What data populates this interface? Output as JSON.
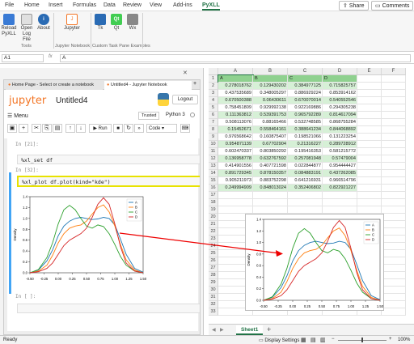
{
  "ribbon": {
    "tabs": [
      "File",
      "Home",
      "Insert",
      "Formulas",
      "Data",
      "Review",
      "View",
      "Add-ins",
      "PyXLL"
    ],
    "active_tab": "PyXLL",
    "share_label": "Share",
    "comments_label": "Comments",
    "tools": [
      "Reload PyXLL",
      "Open Log File",
      "About"
    ],
    "tools_group": "Tools",
    "jupyter_label": "Jupyter",
    "jupyter_group": "Jupyter Notebook",
    "custom": [
      "Tk",
      "Qt",
      "Wx"
    ],
    "custom_group": "Custom Task Pane Examples",
    "colors": {
      "accent": "#217346",
      "tk": "#2a6bb4",
      "qt": "#41cd52",
      "wx": "#7a7a7a"
    }
  },
  "formula_bar": {
    "name_box": "A1",
    "fx": "fx",
    "value": "A"
  },
  "browser": {
    "tabs": [
      "Home Page - Select or create a notebook",
      "Untitled4 - Jupyter Notebook"
    ],
    "close": "×",
    "new_tab": "+"
  },
  "jupyter": {
    "logo": "jupyter",
    "title": "Untitled4",
    "logout": "Logout",
    "menu": "Menu",
    "trusted": "Trusted",
    "kernel": "Python 3",
    "run": "Run",
    "cell_type": "Code",
    "cells": [
      {
        "prompt": "In [21]:",
        "code": ""
      },
      {
        "prompt": "",
        "code": "%xl_set df"
      },
      {
        "prompt": "In [32]:",
        "code": "%xl_plot df.plot(kind=\"kde\")"
      },
      {
        "prompt": "In [ ]:",
        "code": ""
      }
    ]
  },
  "sheet": {
    "columns": [
      "A",
      "B",
      "C",
      "D",
      "E",
      "F"
    ],
    "rows": [
      "1",
      "2",
      "3",
      "4",
      "5",
      "6",
      "7",
      "8",
      "9",
      "10",
      "11",
      "12",
      "13",
      "14",
      "15",
      "16",
      "17",
      "18",
      "19",
      "20",
      "21",
      "22",
      "23",
      "24",
      "25",
      "26",
      "27",
      "28",
      "29",
      "30",
      "31",
      "32",
      "33"
    ],
    "header_row": [
      "A",
      "B",
      "C",
      "D"
    ],
    "data": [
      [
        "0.278018762",
        "0.129430202",
        "0.384977125",
        "0.715825757"
      ],
      [
        "0.437535689",
        "0.348005297",
        "0.886929224",
        "0.853914162"
      ],
      [
        "0.670500388",
        "0.06430611",
        "0.670070014",
        "0.540552546"
      ],
      [
        "0.758451809",
        "0.929992138",
        "0.922169886",
        "0.294305238"
      ],
      [
        "0.111363812",
        "0.539391753",
        "0.965792289",
        "0.814617094"
      ],
      [
        "0.508113076",
        "0.88165466",
        "0.532748585",
        "0.868755284"
      ],
      [
        "0.15452671",
        "0.558464161",
        "0.388641234",
        "0.844068892"
      ],
      [
        "0.976568642",
        "0.160875407",
        "0.198521066",
        "0.131223254"
      ],
      [
        "0.954871139",
        "0.67702904",
        "0.21316227",
        "0.289728912"
      ],
      [
        "0.602470337",
        "0.803850292",
        "0.195416353",
        "0.581215772"
      ],
      [
        "0.136958778",
        "0.632767592",
        "0.257081948",
        "0.57479004"
      ],
      [
        "0.414901556",
        "0.407721598",
        "0.022844877",
        "0.954444427"
      ],
      [
        "0.891729345",
        "0.878150357",
        "0.084883191",
        "0.437262085"
      ],
      [
        "0.905211973",
        "0.883752298",
        "0.641216931",
        "0.966514796"
      ],
      [
        "0.249994909",
        "0.848013024",
        "0.352406802",
        "0.822921227"
      ]
    ],
    "sheet_tab": "Sheet1",
    "add_sheet": "+"
  },
  "status": {
    "left": "Ready",
    "display": "Display Settings",
    "zoom": "100%"
  },
  "chart_data": [
    {
      "type": "line",
      "title": "",
      "xlabel": "",
      "ylabel": "Density",
      "xlim": [
        -0.5,
        1.5
      ],
      "ylim": [
        0,
        1.4
      ],
      "x_ticks": [
        "-0.50",
        "-0.25",
        "0.00",
        "0.25",
        "0.50",
        "0.75",
        "1.00",
        "1.25",
        "1.50"
      ],
      "y_ticks": [
        "0.0",
        "0.2",
        "0.4",
        "0.6",
        "0.8",
        "1.0",
        "1.2",
        "1.4"
      ],
      "legend": "top-right",
      "x": [
        -0.5,
        -0.35,
        -0.2,
        -0.1,
        0.0,
        0.1,
        0.2,
        0.3,
        0.4,
        0.5,
        0.6,
        0.7,
        0.8,
        0.9,
        1.0,
        1.1,
        1.2,
        1.35,
        1.5
      ],
      "series": [
        {
          "name": "A",
          "color": "#1f77b4",
          "values": [
            0.0,
            0.05,
            0.22,
            0.42,
            0.68,
            0.86,
            0.95,
            1.0,
            1.02,
            1.0,
            0.98,
            0.99,
            1.02,
            1.0,
            0.88,
            0.62,
            0.34,
            0.08,
            0.01
          ]
        },
        {
          "name": "B",
          "color": "#ff7f0e",
          "values": [
            0.0,
            0.03,
            0.14,
            0.32,
            0.55,
            0.72,
            0.82,
            0.86,
            0.88,
            0.95,
            1.08,
            1.2,
            1.25,
            1.12,
            0.86,
            0.52,
            0.24,
            0.05,
            0.0
          ]
        },
        {
          "name": "C",
          "color": "#2ca02c",
          "values": [
            0.0,
            0.06,
            0.28,
            0.55,
            0.9,
            1.16,
            1.24,
            1.16,
            1.0,
            0.86,
            0.82,
            0.88,
            0.85,
            0.72,
            0.52,
            0.3,
            0.14,
            0.03,
            0.0
          ]
        },
        {
          "name": "D",
          "color": "#d62728",
          "values": [
            0.0,
            0.02,
            0.08,
            0.18,
            0.34,
            0.5,
            0.6,
            0.66,
            0.72,
            0.82,
            1.02,
            1.26,
            1.38,
            1.26,
            0.9,
            0.48,
            0.18,
            0.03,
            0.0
          ]
        }
      ]
    },
    {
      "type": "line",
      "title": "",
      "xlabel": "",
      "ylabel": "Density",
      "xlim": [
        -0.5,
        1.5
      ],
      "ylim": [
        0,
        1.4
      ],
      "x_ticks": [
        "-0.50",
        "-0.25",
        "0.00",
        "0.25",
        "0.50",
        "0.75",
        "1.00",
        "1.25",
        "1.50"
      ],
      "y_ticks": [
        "0.0",
        "0.2",
        "0.4",
        "0.6",
        "0.8",
        "1.0",
        "1.2",
        "1.4"
      ],
      "legend": "top-right",
      "x": [
        -0.5,
        -0.35,
        -0.2,
        -0.1,
        0.0,
        0.1,
        0.2,
        0.3,
        0.4,
        0.5,
        0.6,
        0.7,
        0.8,
        0.9,
        1.0,
        1.1,
        1.2,
        1.35,
        1.5
      ],
      "series": [
        {
          "name": "A",
          "color": "#1f77b4",
          "values": [
            0.0,
            0.05,
            0.22,
            0.42,
            0.68,
            0.86,
            0.95,
            1.0,
            1.02,
            1.0,
            0.98,
            0.99,
            1.02,
            1.0,
            0.88,
            0.62,
            0.34,
            0.08,
            0.01
          ]
        },
        {
          "name": "B",
          "color": "#ff7f0e",
          "values": [
            0.0,
            0.03,
            0.14,
            0.32,
            0.55,
            0.72,
            0.82,
            0.86,
            0.88,
            0.95,
            1.08,
            1.2,
            1.25,
            1.12,
            0.86,
            0.52,
            0.24,
            0.05,
            0.0
          ]
        },
        {
          "name": "C",
          "color": "#2ca02c",
          "values": [
            0.0,
            0.06,
            0.28,
            0.55,
            0.9,
            1.16,
            1.24,
            1.16,
            1.0,
            0.86,
            0.82,
            0.88,
            0.85,
            0.72,
            0.52,
            0.3,
            0.14,
            0.03,
            0.0
          ]
        },
        {
          "name": "D",
          "color": "#d62728",
          "values": [
            0.0,
            0.02,
            0.08,
            0.18,
            0.34,
            0.5,
            0.6,
            0.66,
            0.72,
            0.82,
            1.02,
            1.26,
            1.38,
            1.26,
            0.9,
            0.48,
            0.18,
            0.03,
            0.0
          ]
        }
      ]
    }
  ]
}
